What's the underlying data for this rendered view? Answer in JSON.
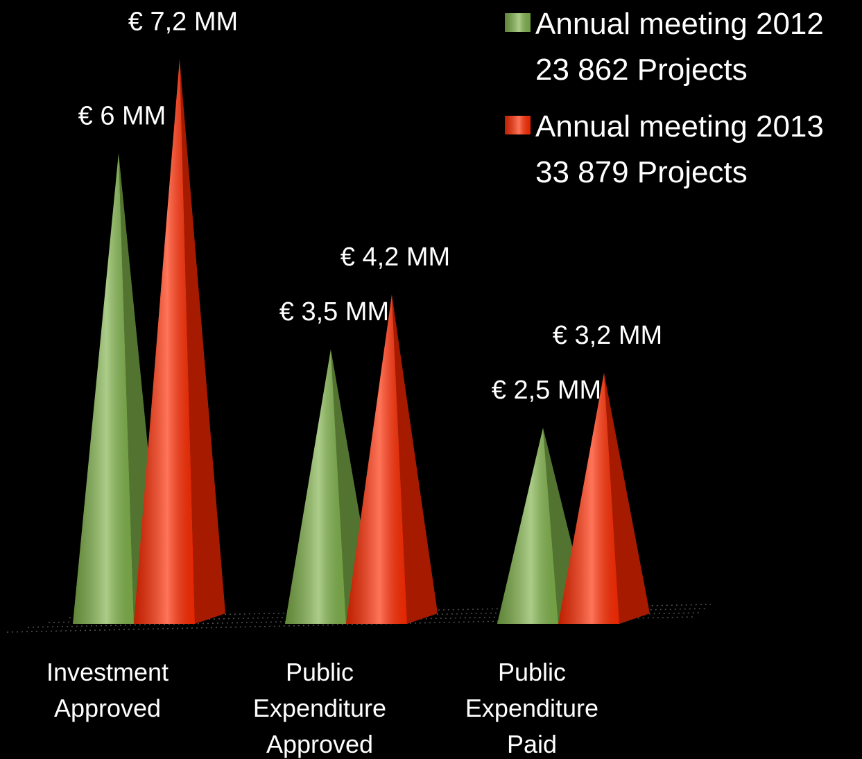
{
  "chart_data": {
    "type": "pyramid",
    "categories": [
      "Investment\nApproved",
      "Public\nExpenditure\nApproved",
      "Public\nExpenditure\nPaid"
    ],
    "series": [
      {
        "name": "Annual meeting 2012\n23 862 Projects",
        "color": "#7fb24a",
        "values": [
          6,
          3.5,
          2.5
        ],
        "value_labels": [
          "€ 6 MM",
          "€ 3,5 MM",
          "€ 2,5 MM"
        ]
      },
      {
        "name": "Annual meeting 2013\n33 879 Projects",
        "color": "#ff2a00",
        "values": [
          7.2,
          4.2,
          3.2
        ],
        "value_labels": [
          "€ 7,2 MM",
          "€ 4,2 MM",
          "€ 3,2 MM"
        ]
      }
    ],
    "ylim": [
      0,
      8
    ]
  }
}
